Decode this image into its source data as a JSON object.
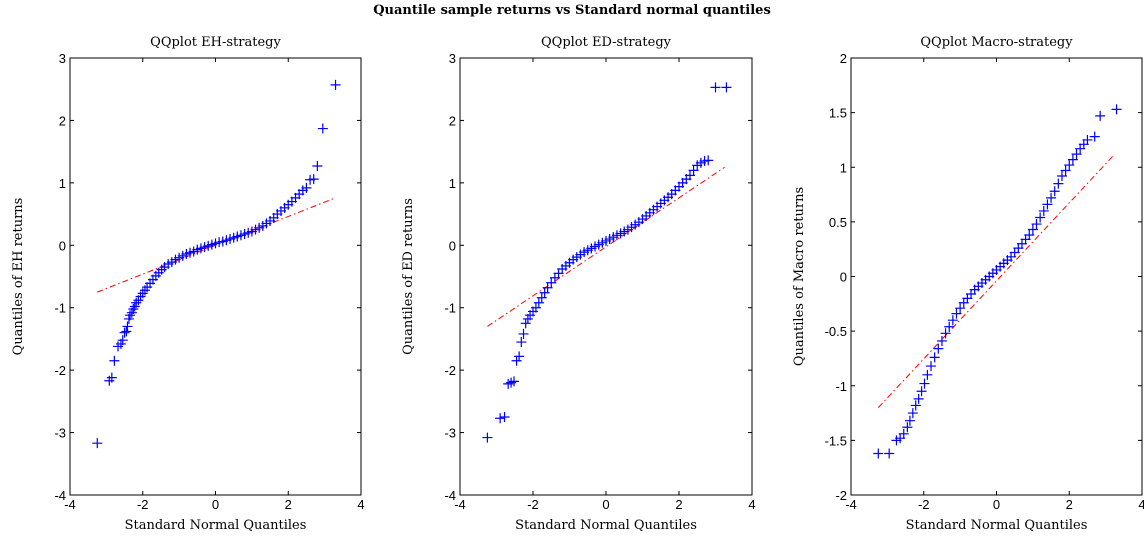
{
  "figure": {
    "title": "Quantile sample returns vs Standard normal quantiles",
    "colors": {
      "marker": "#0000ff",
      "reference_line": "#ff0000",
      "axes": "#000000",
      "background": "#ffffff"
    }
  },
  "chart_data": [
    {
      "type": "scatter",
      "title": "QQplot EH-strategy",
      "xlabel": "Standard Normal Quantiles",
      "ylabel": "Quantiles of EH returns",
      "xlim": [
        -4,
        4
      ],
      "ylim": [
        -4,
        3
      ],
      "xticks": [
        -4,
        -2,
        0,
        2,
        4
      ],
      "yticks": [
        -4,
        -3,
        -2,
        -1,
        0,
        1,
        2,
        3
      ],
      "marker": "+",
      "reference_line": {
        "style": "dash-dot",
        "x": [
          -3.25,
          3.25
        ],
        "y": [
          -0.75,
          0.75
        ]
      },
      "points": [
        [
          -3.25,
          -3.17
        ],
        [
          -2.92,
          -2.17
        ],
        [
          -2.85,
          -2.12
        ],
        [
          -2.78,
          -1.85
        ],
        [
          -2.68,
          -1.62
        ],
        [
          -2.6,
          -1.58
        ],
        [
          -2.55,
          -1.52
        ],
        [
          -2.5,
          -1.4
        ],
        [
          -2.45,
          -1.38
        ],
        [
          -2.42,
          -1.3
        ],
        [
          -2.38,
          -1.18
        ],
        [
          -2.35,
          -1.12
        ],
        [
          -2.3,
          -1.08
        ],
        [
          -2.26,
          -1.02
        ],
        [
          -2.22,
          -0.98
        ],
        [
          -2.18,
          -0.92
        ],
        [
          -2.12,
          -0.88
        ],
        [
          -2.06,
          -0.82
        ],
        [
          -2.0,
          -0.77
        ],
        [
          -1.94,
          -0.72
        ],
        [
          -1.88,
          -0.67
        ],
        [
          -1.8,
          -0.61
        ],
        [
          -1.72,
          -0.55
        ],
        [
          -1.64,
          -0.49
        ],
        [
          -1.56,
          -0.44
        ],
        [
          -1.48,
          -0.39
        ],
        [
          -1.4,
          -0.35
        ],
        [
          -1.3,
          -0.3
        ],
        [
          -1.2,
          -0.27
        ],
        [
          -1.1,
          -0.23
        ],
        [
          -1.0,
          -0.2
        ],
        [
          -0.9,
          -0.17
        ],
        [
          -0.8,
          -0.14
        ],
        [
          -0.7,
          -0.12
        ],
        [
          -0.6,
          -0.1
        ],
        [
          -0.5,
          -0.07
        ],
        [
          -0.4,
          -0.05
        ],
        [
          -0.3,
          -0.03
        ],
        [
          -0.2,
          -0.01
        ],
        [
          -0.1,
          0.01
        ],
        [
          0.0,
          0.03
        ],
        [
          0.1,
          0.05
        ],
        [
          0.2,
          0.06
        ],
        [
          0.3,
          0.08
        ],
        [
          0.4,
          0.1
        ],
        [
          0.5,
          0.12
        ],
        [
          0.6,
          0.14
        ],
        [
          0.7,
          0.16
        ],
        [
          0.8,
          0.18
        ],
        [
          0.9,
          0.2
        ],
        [
          1.0,
          0.22
        ],
        [
          1.1,
          0.25
        ],
        [
          1.2,
          0.28
        ],
        [
          1.3,
          0.31
        ],
        [
          1.4,
          0.35
        ],
        [
          1.5,
          0.39
        ],
        [
          1.6,
          0.44
        ],
        [
          1.7,
          0.5
        ],
        [
          1.8,
          0.55
        ],
        [
          1.9,
          0.6
        ],
        [
          2.0,
          0.65
        ],
        [
          2.1,
          0.7
        ],
        [
          2.2,
          0.76
        ],
        [
          2.3,
          0.82
        ],
        [
          2.4,
          0.88
        ],
        [
          2.5,
          0.92
        ],
        [
          2.6,
          1.05
        ],
        [
          2.7,
          1.06
        ],
        [
          2.8,
          1.27
        ],
        [
          2.95,
          1.87
        ],
        [
          3.3,
          2.57
        ]
      ]
    },
    {
      "type": "scatter",
      "title": "QQplot ED-strategy",
      "xlabel": "Standard Normal Quantiles",
      "ylabel": "Quantiles of ED returns",
      "xlim": [
        -4,
        4
      ],
      "ylim": [
        -4,
        3
      ],
      "xticks": [
        -4,
        -2,
        0,
        2,
        4
      ],
      "yticks": [
        -4,
        -3,
        -2,
        -1,
        0,
        1,
        2,
        3
      ],
      "marker": "+",
      "reference_line": {
        "style": "dash-dot",
        "x": [
          -3.25,
          3.25
        ],
        "y": [
          -1.3,
          1.25
        ]
      },
      "points": [
        [
          -3.25,
          -3.08
        ],
        [
          -2.9,
          -2.77
        ],
        [
          -2.78,
          -2.75
        ],
        [
          -2.68,
          -2.22
        ],
        [
          -2.6,
          -2.2
        ],
        [
          -2.52,
          -2.18
        ],
        [
          -2.45,
          -1.85
        ],
        [
          -2.38,
          -1.78
        ],
        [
          -2.32,
          -1.55
        ],
        [
          -2.26,
          -1.42
        ],
        [
          -2.2,
          -1.25
        ],
        [
          -2.14,
          -1.18
        ],
        [
          -2.08,
          -1.12
        ],
        [
          -2.0,
          -1.06
        ],
        [
          -1.92,
          -1.0
        ],
        [
          -1.84,
          -0.92
        ],
        [
          -1.76,
          -0.84
        ],
        [
          -1.68,
          -0.76
        ],
        [
          -1.6,
          -0.68
        ],
        [
          -1.5,
          -0.6
        ],
        [
          -1.4,
          -0.52
        ],
        [
          -1.3,
          -0.45
        ],
        [
          -1.2,
          -0.38
        ],
        [
          -1.1,
          -0.33
        ],
        [
          -1.0,
          -0.28
        ],
        [
          -0.9,
          -0.23
        ],
        [
          -0.8,
          -0.19
        ],
        [
          -0.7,
          -0.15
        ],
        [
          -0.6,
          -0.11
        ],
        [
          -0.5,
          -0.08
        ],
        [
          -0.4,
          -0.05
        ],
        [
          -0.3,
          -0.02
        ],
        [
          -0.2,
          0.01
        ],
        [
          -0.1,
          0.04
        ],
        [
          0.0,
          0.07
        ],
        [
          0.1,
          0.1
        ],
        [
          0.2,
          0.13
        ],
        [
          0.3,
          0.16
        ],
        [
          0.4,
          0.19
        ],
        [
          0.5,
          0.22
        ],
        [
          0.6,
          0.25
        ],
        [
          0.7,
          0.29
        ],
        [
          0.8,
          0.33
        ],
        [
          0.9,
          0.37
        ],
        [
          1.0,
          0.42
        ],
        [
          1.1,
          0.47
        ],
        [
          1.2,
          0.52
        ],
        [
          1.3,
          0.57
        ],
        [
          1.4,
          0.62
        ],
        [
          1.5,
          0.67
        ],
        [
          1.6,
          0.72
        ],
        [
          1.7,
          0.77
        ],
        [
          1.8,
          0.82
        ],
        [
          1.9,
          0.88
        ],
        [
          2.0,
          0.94
        ],
        [
          2.1,
          1.0
        ],
        [
          2.2,
          1.06
        ],
        [
          2.3,
          1.12
        ],
        [
          2.4,
          1.2
        ],
        [
          2.5,
          1.28
        ],
        [
          2.6,
          1.32
        ],
        [
          2.7,
          1.35
        ],
        [
          2.8,
          1.36
        ],
        [
          3.0,
          2.53
        ],
        [
          3.3,
          2.53
        ]
      ]
    },
    {
      "type": "scatter",
      "title": "QQplot Macro-strategy",
      "xlabel": "Standard Normal Quantiles",
      "ylabel": "Quantiles of Macro returns",
      "xlim": [
        -4,
        4
      ],
      "ylim": [
        -2,
        2
      ],
      "xticks": [
        -4,
        -2,
        0,
        2,
        4
      ],
      "yticks": [
        -2,
        -1.5,
        -1,
        -0.5,
        0,
        0.5,
        1,
        1.5,
        2
      ],
      "marker": "+",
      "reference_line": {
        "style": "dash-dot",
        "x": [
          -3.25,
          3.25
        ],
        "y": [
          -1.2,
          1.12
        ]
      },
      "points": [
        [
          -3.25,
          -1.62
        ],
        [
          -2.95,
          -1.62
        ],
        [
          -2.75,
          -1.5
        ],
        [
          -2.65,
          -1.48
        ],
        [
          -2.55,
          -1.44
        ],
        [
          -2.45,
          -1.38
        ],
        [
          -2.38,
          -1.32
        ],
        [
          -2.3,
          -1.25
        ],
        [
          -2.22,
          -1.18
        ],
        [
          -2.14,
          -1.12
        ],
        [
          -2.06,
          -1.05
        ],
        [
          -1.98,
          -0.98
        ],
        [
          -1.9,
          -0.9
        ],
        [
          -1.8,
          -0.82
        ],
        [
          -1.7,
          -0.74
        ],
        [
          -1.6,
          -0.66
        ],
        [
          -1.5,
          -0.59
        ],
        [
          -1.4,
          -0.52
        ],
        [
          -1.3,
          -0.46
        ],
        [
          -1.2,
          -0.4
        ],
        [
          -1.1,
          -0.34
        ],
        [
          -1.0,
          -0.29
        ],
        [
          -0.9,
          -0.24
        ],
        [
          -0.8,
          -0.2
        ],
        [
          -0.7,
          -0.16
        ],
        [
          -0.6,
          -0.12
        ],
        [
          -0.5,
          -0.09
        ],
        [
          -0.4,
          -0.06
        ],
        [
          -0.3,
          -0.03
        ],
        [
          -0.2,
          0.0
        ],
        [
          -0.1,
          0.03
        ],
        [
          0.0,
          0.06
        ],
        [
          0.1,
          0.09
        ],
        [
          0.2,
          0.12
        ],
        [
          0.3,
          0.15
        ],
        [
          0.4,
          0.18
        ],
        [
          0.5,
          0.22
        ],
        [
          0.6,
          0.26
        ],
        [
          0.7,
          0.3
        ],
        [
          0.8,
          0.34
        ],
        [
          0.9,
          0.38
        ],
        [
          1.0,
          0.43
        ],
        [
          1.1,
          0.48
        ],
        [
          1.2,
          0.54
        ],
        [
          1.3,
          0.6
        ],
        [
          1.4,
          0.66
        ],
        [
          1.5,
          0.72
        ],
        [
          1.6,
          0.78
        ],
        [
          1.7,
          0.85
        ],
        [
          1.8,
          0.92
        ],
        [
          1.9,
          0.97
        ],
        [
          2.0,
          1.02
        ],
        [
          2.1,
          1.07
        ],
        [
          2.2,
          1.12
        ],
        [
          2.3,
          1.17
        ],
        [
          2.4,
          1.21
        ],
        [
          2.5,
          1.25
        ],
        [
          2.7,
          1.28
        ],
        [
          2.85,
          1.47
        ],
        [
          3.3,
          1.53
        ]
      ]
    }
  ]
}
